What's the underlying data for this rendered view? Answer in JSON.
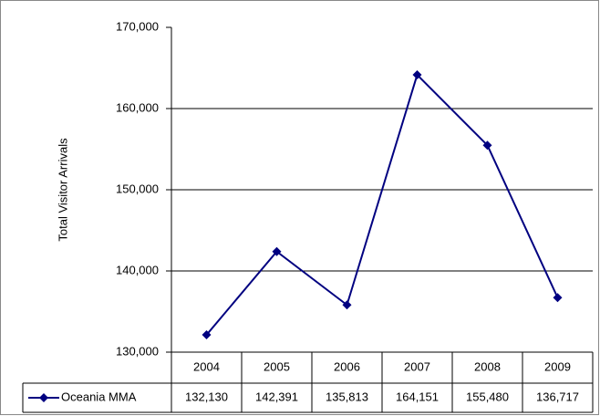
{
  "chart_data": {
    "type": "line",
    "y_axis_label": "Total Visitor Arrivals",
    "categories": [
      "2004",
      "2005",
      "2006",
      "2007",
      "2008",
      "2009"
    ],
    "series": [
      {
        "name": "Oceania MMA",
        "color": "#000080",
        "values": [
          132130,
          142391,
          135813,
          164151,
          155480,
          136717
        ],
        "value_labels": [
          "132,130",
          "142,391",
          "135,813",
          "164,151",
          "155,480",
          "136,717"
        ]
      }
    ],
    "ylim": [
      130000,
      170000
    ],
    "yticks": [
      {
        "value": 130000,
        "label": "130,000"
      },
      {
        "value": 140000,
        "label": "140,000"
      },
      {
        "value": 150000,
        "label": "150,000"
      },
      {
        "value": 160000,
        "label": "160,000"
      },
      {
        "value": 170000,
        "label": "170,000"
      }
    ],
    "grid": true,
    "data_table": true
  }
}
